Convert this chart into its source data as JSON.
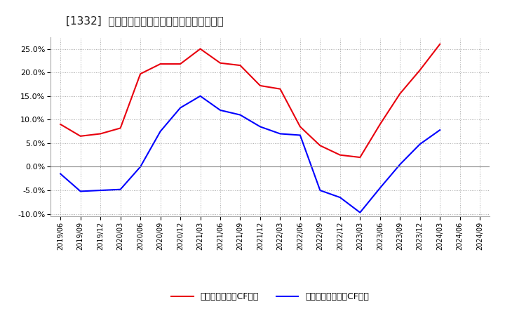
{
  "title": "[1332]  有利子負債キャッシュフロー比率の推移",
  "x_labels": [
    "2019/06",
    "2019/09",
    "2019/12",
    "2020/03",
    "2020/06",
    "2020/09",
    "2020/12",
    "2021/03",
    "2021/06",
    "2021/09",
    "2021/12",
    "2022/03",
    "2022/06",
    "2022/09",
    "2022/12",
    "2023/03",
    "2023/06",
    "2023/09",
    "2023/12",
    "2024/03",
    "2024/06",
    "2024/09"
  ],
  "red_values": [
    9.0,
    6.5,
    7.0,
    8.2,
    19.7,
    21.8,
    21.8,
    25.0,
    22.0,
    21.5,
    17.2,
    16.5,
    8.5,
    4.5,
    2.5,
    2.0,
    9.0,
    15.5,
    20.5,
    26.0,
    null,
    null
  ],
  "blue_values": [
    -1.5,
    -5.2,
    -5.0,
    -4.8,
    0.0,
    7.5,
    12.5,
    15.0,
    12.0,
    11.0,
    8.5,
    7.0,
    6.7,
    -5.0,
    -6.5,
    -9.7,
    -4.5,
    0.5,
    4.8,
    7.8,
    null,
    null
  ],
  "red_color": "#e8000d",
  "blue_color": "#0000ff",
  "background_color": "#ffffff",
  "grid_color": "#aaaaaa",
  "ylim": [
    -10.5,
    27.5
  ],
  "yticks": [
    -10.0,
    -5.0,
    0.0,
    5.0,
    10.0,
    15.0,
    20.0,
    25.0
  ],
  "legend_red": "有利子負債営業CF比率",
  "legend_blue": "有利子負債フリーCF比率",
  "zero_line_color": "#888888",
  "linewidth": 1.5
}
